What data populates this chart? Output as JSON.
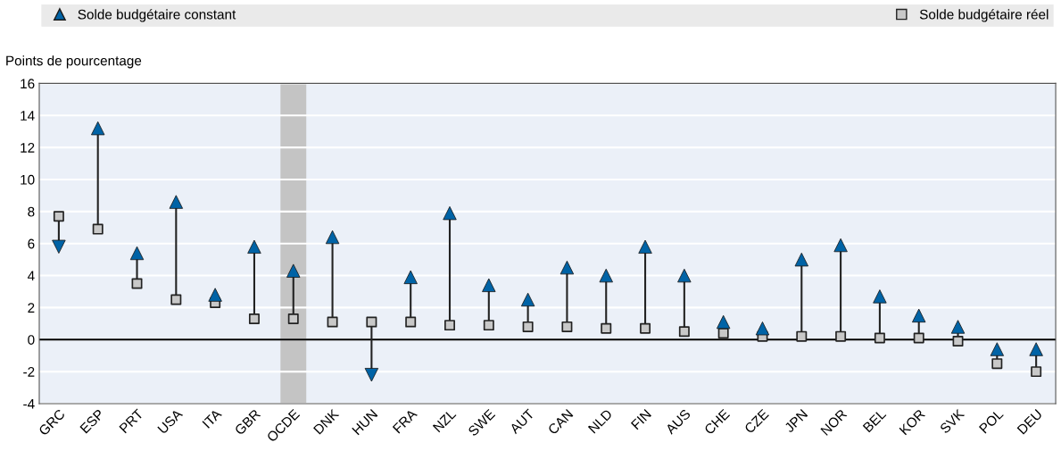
{
  "chart_data": {
    "type": "scatter",
    "ylabel": "Points de pourcentage",
    "categories": [
      "GRC",
      "ESP",
      "PRT",
      "USA",
      "ITA",
      "GBR",
      "OCDE",
      "DNK",
      "HUN",
      "FRA",
      "NZL",
      "SWE",
      "AUT",
      "CAN",
      "NLD",
      "FIN",
      "AUS",
      "CHE",
      "CZE",
      "JPN",
      "NOR",
      "BEL",
      "KOR",
      "SVK",
      "POL",
      "DEU"
    ],
    "series": [
      {
        "name": "Solde budgétaire constant",
        "color": "#0063a6",
        "marker": "triangle",
        "values": [
          5.8,
          13.2,
          5.4,
          8.6,
          2.8,
          5.8,
          4.3,
          6.4,
          -2.2,
          3.9,
          7.9,
          3.4,
          2.5,
          4.5,
          4.0,
          5.8,
          4.0,
          1.1,
          0.7,
          5.0,
          5.9,
          2.7,
          1.5,
          0.8,
          -0.6,
          -0.6
        ]
      },
      {
        "name": "Solde budgétaire réel",
        "color": "#c8c8c8",
        "marker": "square",
        "values": [
          7.7,
          6.9,
          3.5,
          2.5,
          2.3,
          1.3,
          1.3,
          1.1,
          1.1,
          1.1,
          0.9,
          0.9,
          0.8,
          0.8,
          0.7,
          0.7,
          0.5,
          0.4,
          0.2,
          0.2,
          0.2,
          0.1,
          0.1,
          -0.1,
          -1.5,
          -2.0
        ]
      }
    ],
    "ylim": [
      -4,
      16
    ],
    "yticks": [
      -4,
      -2,
      0,
      2,
      4,
      6,
      8,
      10,
      12,
      14,
      16
    ],
    "ref_lines": [
      {
        "axis": "y",
        "value": 0,
        "color": "#000000"
      }
    ],
    "bands": [
      {
        "axis": "x",
        "from": "OCDE",
        "to": "OCDE",
        "color": "#c4c4c4"
      }
    ],
    "grid": "y",
    "legend": "top"
  }
}
